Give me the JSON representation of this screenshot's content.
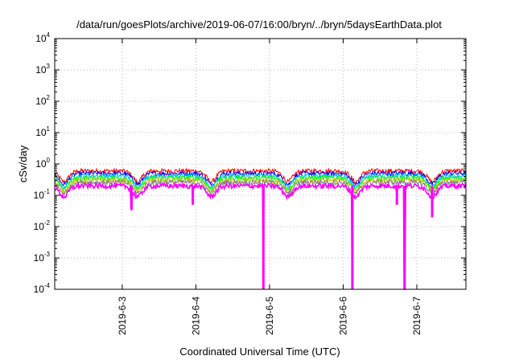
{
  "chart_data": {
    "type": "line",
    "title": "/data/run/goesPlots/archive/2019-06-07/16:00/bryn/../bryn/5daysEarthData.plot",
    "xlabel": "Coordinated Universal Time (UTC)",
    "ylabel": "cSv/day",
    "yscale": "log",
    "ylim": [
      0.0001,
      10000
    ],
    "y_ticks": [
      {
        "base": "10",
        "exp": "4",
        "value": 10000
      },
      {
        "base": "10",
        "exp": "3",
        "value": 1000
      },
      {
        "base": "10",
        "exp": "2",
        "value": 100
      },
      {
        "base": "10",
        "exp": "1",
        "value": 10
      },
      {
        "base": "10",
        "exp": "0",
        "value": 1
      },
      {
        "base": "10",
        "exp": "-1",
        "value": 0.1
      },
      {
        "base": "10",
        "exp": "-2",
        "value": 0.01
      },
      {
        "base": "10",
        "exp": "-3",
        "value": 0.001
      },
      {
        "base": "10",
        "exp": "-4",
        "value": 0.0001
      }
    ],
    "xlim": [
      "2019-06-02 02:00",
      "2019-06-07 16:00"
    ],
    "x_ticks": [
      "2019-6-3",
      "2019-6-4",
      "2019-6-5",
      "2019-6-6",
      "2019-6-7"
    ],
    "grid": true,
    "legend": "none",
    "series_colors": [
      "#ff0000",
      "#0000ff",
      "#00c0ff",
      "#00ff00",
      "#c0c000",
      "#808080",
      "#ff00ff"
    ],
    "series_typical_levels": [
      0.6,
      0.5,
      0.42,
      0.36,
      0.3,
      0.26,
      0.2
    ],
    "daily_dips": [
      {
        "time": "2019-06-02 05:00",
        "value": 0.15
      },
      {
        "time": "2019-06-03 05:00",
        "value": 0.1
      },
      {
        "time": "2019-06-04 05:00",
        "value": 0.1
      },
      {
        "time": "2019-06-05 06:00",
        "value": 0.12
      },
      {
        "time": "2019-06-06 04:00",
        "value": 0.08
      },
      {
        "time": "2019-06-07 05:00",
        "value": 0.1
      }
    ],
    "magenta_spikes": [
      {
        "time": "2019-06-03 03:00",
        "value": 0.035
      },
      {
        "time": "2019-06-03 23:00",
        "value": 0.05
      },
      {
        "time": "2019-06-04 22:00",
        "value": 0.0001
      },
      {
        "time": "2019-06-06 03:00",
        "value": 0.0001
      },
      {
        "time": "2019-06-06 17:30",
        "value": 0.05
      },
      {
        "time": "2019-06-06 20:00",
        "value": 0.0001
      },
      {
        "time": "2019-06-07 05:00",
        "value": 0.02
      }
    ]
  }
}
